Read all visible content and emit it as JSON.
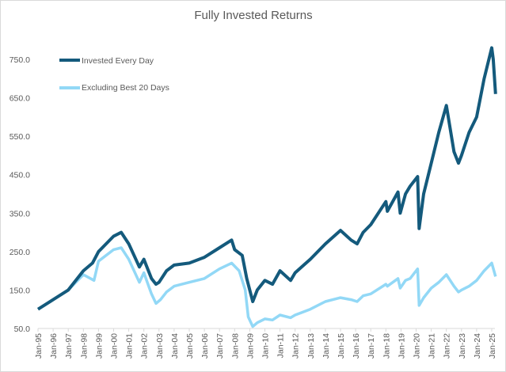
{
  "chart_data": {
    "type": "line",
    "title": "Fully Invested Returns",
    "xlabel": "",
    "ylabel": "",
    "ylim": [
      50,
      800
    ],
    "xlim": [
      1995,
      2025.3
    ],
    "yticks": [
      "50.0",
      "150.0",
      "250.0",
      "350.0",
      "450.0",
      "550.0",
      "650.0",
      "750.0"
    ],
    "ytick_values": [
      50,
      150,
      250,
      350,
      450,
      550,
      650,
      750
    ],
    "xticks": [
      "Jan-95",
      "Jan-96",
      "Jan-97",
      "Jan-98",
      "Jan-99",
      "Jan-00",
      "Jan-01",
      "Jan-02",
      "Jan-03",
      "Jan-04",
      "Jan-05",
      "Jan-06",
      "Jan-07",
      "Jan-08",
      "Jan-09",
      "Jan-10",
      "Jan-11",
      "Jan-12",
      "Jan-13",
      "Jan-14",
      "Jan-15",
      "Jan-16",
      "Jan-17",
      "Jan-18",
      "Jan-19",
      "Jan-20",
      "Jan-21",
      "Jan-22",
      "Jan-23",
      "Jan-24",
      "Jan-25"
    ],
    "grid": false,
    "legend_position": "top-left",
    "series": [
      {
        "name": "Invested Every Day",
        "color": "#145a7c",
        "x": [
          1995,
          1996,
          1997,
          1998,
          1998.6,
          1999,
          2000,
          2000.5,
          2001,
          2001.7,
          2002,
          2002.5,
          2002.8,
          2003,
          2003.5,
          2004,
          2005,
          2006,
          2007,
          2007.8,
          2008,
          2008.5,
          2008.8,
          2009.2,
          2009.5,
          2010,
          2010.5,
          2011,
          2011.7,
          2012,
          2013,
          2014,
          2015,
          2015.7,
          2016.1,
          2016.5,
          2017,
          2018,
          2018.1,
          2018.8,
          2018.95,
          2019.3,
          2019.6,
          2020.1,
          2020.2,
          2020.5,
          2021,
          2021.5,
          2022,
          2022.5,
          2022.8,
          2023,
          2023.5,
          2024,
          2024.5,
          2025,
          2025.1,
          2025.25
        ],
        "values": [
          100,
          125,
          150,
          200,
          220,
          250,
          290,
          300,
          270,
          210,
          230,
          180,
          165,
          170,
          200,
          215,
          220,
          235,
          260,
          280,
          255,
          240,
          180,
          120,
          150,
          175,
          165,
          200,
          175,
          195,
          230,
          270,
          305,
          280,
          270,
          300,
          320,
          380,
          355,
          405,
          350,
          400,
          420,
          445,
          310,
          400,
          480,
          560,
          630,
          510,
          480,
          500,
          560,
          600,
          700,
          780,
          750,
          660
        ]
      },
      {
        "name": "Excluding Best 20 Days",
        "color": "#92d8f6",
        "x": [
          1995,
          1996,
          1997,
          1998,
          1998.7,
          1999,
          2000,
          2000.5,
          2001,
          2001.7,
          2002,
          2002.5,
          2002.8,
          2003.1,
          2003.5,
          2004,
          2005,
          2006,
          2007,
          2007.8,
          2008.3,
          2008.7,
          2008.9,
          2009.2,
          2009.5,
          2010,
          2010.5,
          2011,
          2011.7,
          2012,
          2013,
          2014,
          2015,
          2015.7,
          2016.1,
          2016.5,
          2017,
          2018,
          2018.1,
          2018.8,
          2018.95,
          2019.3,
          2019.6,
          2020.1,
          2020.2,
          2020.5,
          2021,
          2021.5,
          2022,
          2022.5,
          2022.8,
          2023,
          2023.5,
          2024,
          2024.5,
          2025,
          2025.25
        ],
        "values": [
          100,
          125,
          150,
          190,
          175,
          225,
          255,
          260,
          230,
          170,
          195,
          140,
          115,
          125,
          145,
          160,
          170,
          180,
          205,
          220,
          200,
          150,
          80,
          55,
          65,
          75,
          72,
          85,
          78,
          85,
          100,
          120,
          130,
          125,
          120,
          135,
          140,
          165,
          160,
          180,
          155,
          175,
          180,
          205,
          110,
          130,
          155,
          170,
          190,
          160,
          145,
          150,
          160,
          175,
          200,
          220,
          185
        ]
      }
    ]
  }
}
